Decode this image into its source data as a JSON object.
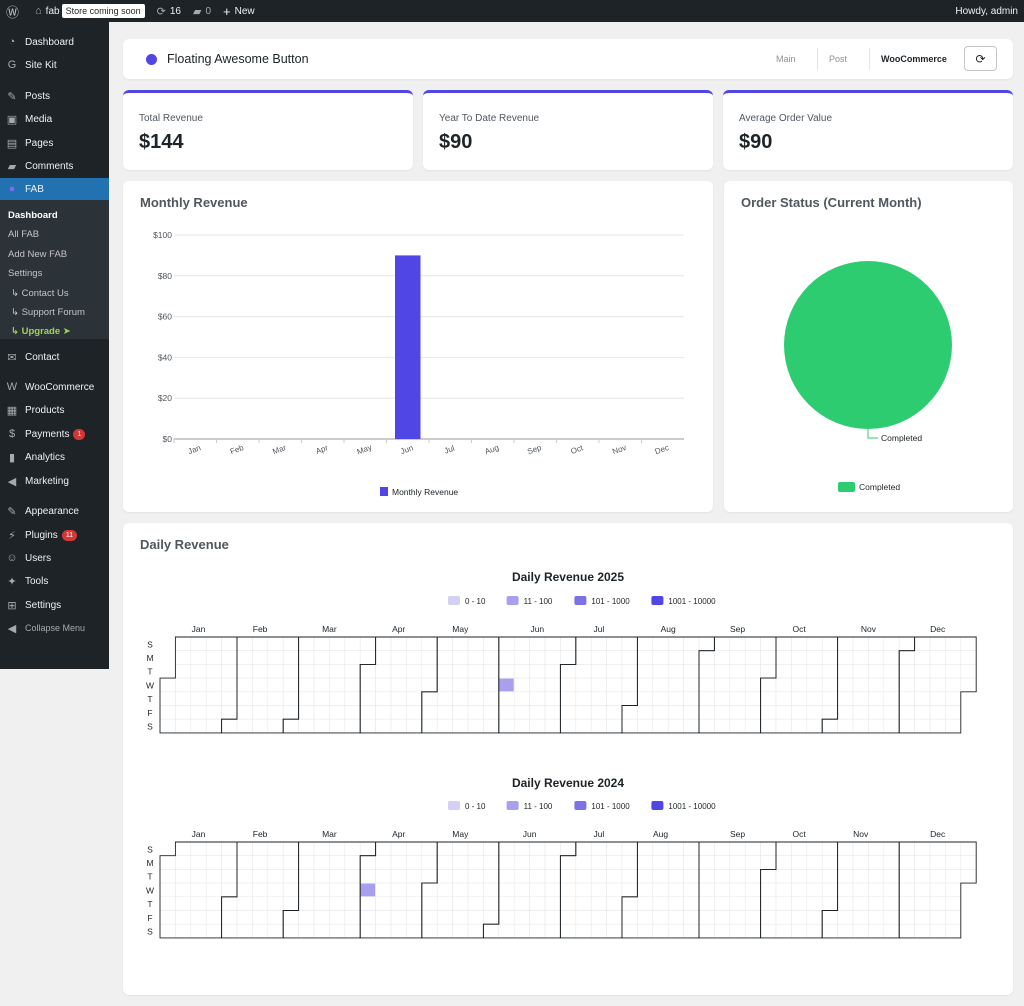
{
  "adminbar": {
    "site_name": "fab",
    "store_badge": "Store coming soon",
    "updates_count": "16",
    "comments_count": "0",
    "new_label": "New",
    "howdy": "Howdy, admin"
  },
  "sidebar": {
    "items": [
      {
        "label": "Dashboard",
        "icon": "gauge-icon"
      },
      {
        "label": "Site Kit",
        "icon": "google-g-icon"
      },
      {
        "label": "Posts",
        "icon": "pin-icon"
      },
      {
        "label": "Media",
        "icon": "media-icon"
      },
      {
        "label": "Pages",
        "icon": "pages-icon"
      },
      {
        "label": "Comments",
        "icon": "comment-icon"
      },
      {
        "label": "FAB",
        "icon": "fab-dot-icon"
      },
      {
        "label": "Contact",
        "icon": "mail-icon"
      },
      {
        "label": "WooCommerce",
        "icon": "woo-icon"
      },
      {
        "label": "Products",
        "icon": "box-icon"
      },
      {
        "label": "Payments",
        "icon": "card-icon",
        "badge": "1"
      },
      {
        "label": "Analytics",
        "icon": "bar-chart-icon"
      },
      {
        "label": "Marketing",
        "icon": "megaphone-icon"
      },
      {
        "label": "Appearance",
        "icon": "brush-icon"
      },
      {
        "label": "Plugins",
        "icon": "plug-icon",
        "badge": "11"
      },
      {
        "label": "Users",
        "icon": "user-icon"
      },
      {
        "label": "Tools",
        "icon": "wrench-icon"
      },
      {
        "label": "Settings",
        "icon": "settings-icon"
      },
      {
        "label": "Collapse Menu",
        "icon": "collapse-icon"
      }
    ],
    "submenu": [
      "Dashboard",
      "All FAB",
      "Add New FAB",
      "Settings",
      "↳ Contact Us",
      "↳ Support Forum",
      "↳ Upgrade ➤"
    ]
  },
  "header": {
    "title": "Floating Awesome Button",
    "tabs": [
      "Main",
      "Post",
      "WooCommerce"
    ],
    "active_tab": "WooCommerce",
    "accent": "#4f46e5"
  },
  "stats": [
    {
      "label": "Total Revenue",
      "value": "$144"
    },
    {
      "label": "Year To Date Revenue",
      "value": "$90"
    },
    {
      "label": "Average Order Value",
      "value": "$90"
    }
  ],
  "monthly": {
    "title": "Monthly Revenue",
    "chart_data": {
      "type": "bar",
      "categories": [
        "Jan",
        "Feb",
        "Mar",
        "Apr",
        "May",
        "Jun",
        "Jul",
        "Aug",
        "Sep",
        "Oct",
        "Nov",
        "Dec"
      ],
      "series": [
        {
          "name": "Monthly Revenue",
          "values": [
            0,
            0,
            0,
            0,
            0,
            90,
            0,
            0,
            0,
            0,
            0,
            0
          ],
          "color": "#4f46e5"
        }
      ],
      "yticks": [
        "$0",
        "$20",
        "$40",
        "$60",
        "$80",
        "$100"
      ],
      "ylim": [
        0,
        100
      ],
      "grid": true,
      "legend": "bottom"
    }
  },
  "order_status": {
    "title": "Order Status (Current Month)",
    "chart_data": {
      "type": "pie",
      "slices": [
        {
          "name": "Completed",
          "value": 1,
          "color": "#2ecc71"
        }
      ],
      "legend": "bottom"
    }
  },
  "daily": {
    "title": "Daily Revenue",
    "legend_ranges": [
      {
        "label": "0 - 10",
        "color": "#d4d0f5"
      },
      {
        "label": "11 - 100",
        "color": "#a8a0ef"
      },
      {
        "label": "101 - 1000",
        "color": "#7d71e6"
      },
      {
        "label": "1001 - 10000",
        "color": "#4f46e5"
      }
    ],
    "day_labels": [
      "S",
      "M",
      "T",
      "W",
      "T",
      "F",
      "S"
    ],
    "months": [
      "Jan",
      "Feb",
      "Mar",
      "Apr",
      "May",
      "Jun",
      "Jul",
      "Aug",
      "Sep",
      "Oct",
      "Nov",
      "Dec"
    ],
    "heatmaps": [
      {
        "title": "Daily Revenue 2025",
        "year": 2025,
        "filled": [
          {
            "date": "2025-06-04",
            "range": 1
          }
        ]
      },
      {
        "title": "Daily Revenue 2024",
        "year": 2024,
        "filled": [
          {
            "date": "2024-04-03",
            "range": 1
          }
        ]
      }
    ]
  }
}
